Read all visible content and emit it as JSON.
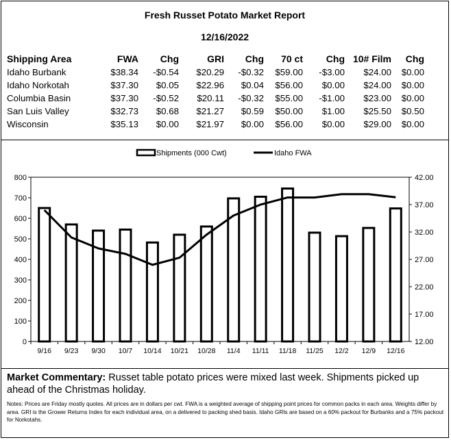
{
  "report": {
    "title": "Fresh Russet Potato Market Report",
    "date": "12/16/2022"
  },
  "table": {
    "headers": [
      "Shipping Area",
      "FWA",
      "Chg",
      "GRI",
      "Chg",
      "70 ct",
      "Chg",
      "10# Film",
      "Chg"
    ],
    "rows": [
      [
        "Idaho Burbank",
        "$38.34",
        "-$0.54",
        "$20.29",
        "-$0.32",
        "$59.00",
        "-$3.00",
        "$24.00",
        "$0.00"
      ],
      [
        "Idaho Norkotah",
        "$37.30",
        "$0.05",
        "$22.96",
        "$0.04",
        "$56.00",
        "$0.00",
        "$24.00",
        "$0.00"
      ],
      [
        "Columbia Basin",
        "$37.30",
        "-$0.52",
        "$20.11",
        "-$0.32",
        "$55.00",
        "-$1.00",
        "$23.00",
        "$0.00"
      ],
      [
        "San Luis Valley",
        "$32.73",
        "$0.68",
        "$21.27",
        "$0.59",
        "$50.00",
        "$1.00",
        "$25.50",
        "$0.50"
      ],
      [
        "Wisconsin",
        "$35.13",
        "$0.00",
        "$21.97",
        "$0.00",
        "$56.00",
        "$0.00",
        "$29.00",
        "$0.00"
      ]
    ]
  },
  "chart_data": {
    "type": "bar",
    "categories": [
      "9/16",
      "9/23",
      "9/30",
      "10/7",
      "10/14",
      "10/21",
      "10/28",
      "11/4",
      "11/11",
      "11/18",
      "11/25",
      "12/2",
      "12/9",
      "12/16"
    ],
    "series": [
      {
        "name": "Shipments (000 Cwt)",
        "type": "bar",
        "axis": "left",
        "values": [
          650,
          570,
          540,
          545,
          482,
          520,
          560,
          697,
          705,
          745,
          530,
          513,
          553,
          648
        ]
      },
      {
        "name": "Idaho FWA",
        "type": "line",
        "axis": "right",
        "values": [
          36.0,
          31.0,
          29.0,
          28.0,
          26.0,
          27.3,
          31.5,
          35.0,
          37.0,
          38.3,
          38.3,
          38.9,
          38.9,
          38.34
        ]
      }
    ],
    "left_axis": {
      "ylim": [
        0,
        800
      ],
      "ticks": [
        "0",
        "100",
        "200",
        "300",
        "400",
        "500",
        "600",
        "700",
        "800"
      ]
    },
    "right_axis": {
      "ylim": [
        12,
        42
      ],
      "ticks": [
        "12.00",
        "17.00",
        "22.00",
        "27.00",
        "32.00",
        "37.00",
        "42.00"
      ]
    },
    "legend_position": "top-center",
    "grid": false
  },
  "commentary": {
    "heading": "Market Commentary:",
    "text": " Russet table potato prices were mixed last week. Shipments picked up ahead of the Christmas holiday."
  },
  "notes": "Notes: Prices are Friday mostly quotes. All prices are in dollars per cwt. FWA is a weighted average of shipping point prices for  common packs in each area. Weights differ by area. GRI is the Grower Returns Index for each individual area, on a delivered to packing shed basis. Idaho GRIs are based on a 60% packout for Burbanks and a 75% packout for Norkotahs."
}
